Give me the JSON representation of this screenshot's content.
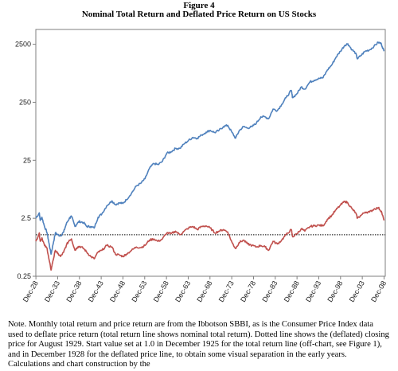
{
  "figure": {
    "label": "Figure 4",
    "title": "Nominal Total Return and Deflated Price Return on US Stocks"
  },
  "note": "Note. Monthly total return and price return are from the Ibbotson SBBI, as is the Consumer Price Index data used to deflate price return (total return line shows nominal total return).    Dotted line shows the (deflated) closing price for August 1929.  Start value set at 1.0 in December 1925 for the total return line (off-chart, see Figure 1), and in December 1928 for the deflated price line, to obtain some visual separation in the early years. Calculations and chart construction by the",
  "chart_data": {
    "type": "line",
    "title": "Nominal Total Return and Deflated Price Return on US Stocks",
    "xlabel": "",
    "ylabel": "",
    "y_scale": "log",
    "ylim": [
      0.25,
      4500
    ],
    "y_ticks": [
      0.25,
      2.5,
      25,
      250,
      2500
    ],
    "y_tick_labels": [
      "0.25",
      "2.5",
      "25",
      "250",
      "2500"
    ],
    "xlim": [
      1928.9,
      2009.2
    ],
    "x_ticks": [
      1928.92,
      1933.92,
      1938.92,
      1943.92,
      1948.92,
      1953.92,
      1958.92,
      1963.92,
      1968.92,
      1973.92,
      1978.92,
      1983.92,
      1988.92,
      1993.92,
      1998.92,
      2003.92,
      2008.92
    ],
    "x_tick_labels": [
      "Dec-28",
      "Dec-33",
      "Dec-38",
      "Dec-43",
      "Dec-48",
      "Dec-53",
      "Dec-58",
      "Dec-63",
      "Dec-68",
      "Dec-73",
      "Dec-78",
      "Dec-83",
      "Dec-88",
      "Dec-93",
      "Dec-98",
      "Dec-03",
      "Dec-08"
    ],
    "grid": false,
    "legend": "none",
    "reference_line": {
      "value": 1.3,
      "style": "dotted",
      "color": "#000000"
    },
    "series": [
      {
        "color": "#4f81bd",
        "points": [
          [
            1928.9,
            2.5
          ],
          [
            1929.7,
            3.1
          ],
          [
            1929.9,
            2.3
          ],
          [
            1930.3,
            2.6
          ],
          [
            1930.9,
            1.8
          ],
          [
            1931.5,
            1.4
          ],
          [
            1931.9,
            0.95
          ],
          [
            1932.4,
            0.6
          ],
          [
            1932.8,
            0.85
          ],
          [
            1933.4,
            1.4
          ],
          [
            1933.9,
            1.3
          ],
          [
            1934.6,
            1.25
          ],
          [
            1935.3,
            1.45
          ],
          [
            1935.9,
            2.0
          ],
          [
            1936.6,
            2.5
          ],
          [
            1937.1,
            2.7
          ],
          [
            1937.9,
            1.8
          ],
          [
            1938.5,
            2.1
          ],
          [
            1939.0,
            2.2
          ],
          [
            1939.9,
            2.1
          ],
          [
            1940.6,
            1.8
          ],
          [
            1941.5,
            1.8
          ],
          [
            1942.3,
            1.7
          ],
          [
            1943.2,
            2.6
          ],
          [
            1944.1,
            3.0
          ],
          [
            1945.2,
            4.1
          ],
          [
            1946.4,
            5.0
          ],
          [
            1947.2,
            4.3
          ],
          [
            1948.1,
            4.6
          ],
          [
            1948.9,
            4.5
          ],
          [
            1949.7,
            5.2
          ],
          [
            1950.9,
            6.8
          ],
          [
            1952.0,
            9.0
          ],
          [
            1953.0,
            10.0
          ],
          [
            1954.0,
            12.0
          ],
          [
            1955.0,
            18.0
          ],
          [
            1956.0,
            22.0
          ],
          [
            1957.0,
            21.0
          ],
          [
            1958.0,
            24.0
          ],
          [
            1959.0,
            33.0
          ],
          [
            1960.0,
            35.0
          ],
          [
            1961.0,
            40.0
          ],
          [
            1962.0,
            40.0
          ],
          [
            1963.0,
            48.0
          ],
          [
            1964.0,
            55.0
          ],
          [
            1965.0,
            62.0
          ],
          [
            1966.0,
            60.0
          ],
          [
            1967.0,
            68.0
          ],
          [
            1968.0,
            76.0
          ],
          [
            1969.0,
            82.0
          ],
          [
            1970.0,
            75.0
          ],
          [
            1971.0,
            82.0
          ],
          [
            1972.0,
            95.0
          ],
          [
            1973.0,
            100.0
          ],
          [
            1974.0,
            75.0
          ],
          [
            1974.8,
            60.0
          ],
          [
            1975.6,
            80.0
          ],
          [
            1976.6,
            95.0
          ],
          [
            1977.6,
            90.0
          ],
          [
            1978.6,
            95.0
          ],
          [
            1979.6,
            110.0
          ],
          [
            1980.6,
            140.0
          ],
          [
            1981.6,
            140.0
          ],
          [
            1982.4,
            130.0
          ],
          [
            1983.4,
            190.0
          ],
          [
            1984.4,
            180.0
          ],
          [
            1985.4,
            230.0
          ],
          [
            1986.4,
            300.0
          ],
          [
            1987.6,
            400.0
          ],
          [
            1987.9,
            300.0
          ],
          [
            1988.9,
            350.0
          ],
          [
            1989.9,
            460.0
          ],
          [
            1990.7,
            420.0
          ],
          [
            1991.9,
            560.0
          ],
          [
            1992.9,
            600.0
          ],
          [
            1993.9,
            650.0
          ],
          [
            1994.9,
            660.0
          ],
          [
            1995.9,
            900.0
          ],
          [
            1996.9,
            1100.0
          ],
          [
            1997.9,
            1500.0
          ],
          [
            1998.9,
            1900.0
          ],
          [
            1999.9,
            2400.0
          ],
          [
            2000.6,
            2550.0
          ],
          [
            2001.6,
            2000.0
          ],
          [
            2002.4,
            1750.0
          ],
          [
            2002.8,
            1400.0
          ],
          [
            2003.6,
            1600.0
          ],
          [
            2004.6,
            1900.0
          ],
          [
            2005.6,
            2000.0
          ],
          [
            2006.6,
            2300.0
          ],
          [
            2007.6,
            2700.0
          ],
          [
            2008.3,
            2550.0
          ],
          [
            2008.9,
            1900.0
          ]
        ]
      },
      {
        "color": "#c0504d",
        "points": [
          [
            1928.9,
            1.0
          ],
          [
            1929.7,
            1.4
          ],
          [
            1929.9,
            1.0
          ],
          [
            1930.3,
            1.15
          ],
          [
            1930.9,
            0.85
          ],
          [
            1931.5,
            0.75
          ],
          [
            1931.9,
            0.5
          ],
          [
            1932.4,
            0.32
          ],
          [
            1932.8,
            0.45
          ],
          [
            1933.4,
            0.7
          ],
          [
            1933.9,
            0.62
          ],
          [
            1934.6,
            0.55
          ],
          [
            1935.3,
            0.65
          ],
          [
            1935.9,
            0.85
          ],
          [
            1936.6,
            1.05
          ],
          [
            1937.1,
            1.1
          ],
          [
            1937.9,
            0.7
          ],
          [
            1938.5,
            0.8
          ],
          [
            1939.0,
            0.82
          ],
          [
            1939.9,
            0.75
          ],
          [
            1940.6,
            0.65
          ],
          [
            1941.5,
            0.55
          ],
          [
            1942.3,
            0.5
          ],
          [
            1943.2,
            0.65
          ],
          [
            1944.1,
            0.7
          ],
          [
            1945.2,
            0.85
          ],
          [
            1946.4,
            0.8
          ],
          [
            1947.2,
            0.6
          ],
          [
            1948.1,
            0.58
          ],
          [
            1948.9,
            0.55
          ],
          [
            1949.7,
            0.6
          ],
          [
            1950.9,
            0.7
          ],
          [
            1952.0,
            0.8
          ],
          [
            1953.0,
            0.78
          ],
          [
            1954.0,
            0.85
          ],
          [
            1955.0,
            1.05
          ],
          [
            1956.0,
            1.1
          ],
          [
            1957.0,
            1.0
          ],
          [
            1958.0,
            1.1
          ],
          [
            1959.0,
            1.4
          ],
          [
            1960.0,
            1.35
          ],
          [
            1961.0,
            1.5
          ],
          [
            1962.0,
            1.3
          ],
          [
            1963.0,
            1.5
          ],
          [
            1964.0,
            1.7
          ],
          [
            1965.0,
            1.8
          ],
          [
            1966.0,
            1.6
          ],
          [
            1967.0,
            1.8
          ],
          [
            1968.0,
            1.85
          ],
          [
            1969.0,
            1.7
          ],
          [
            1970.0,
            1.4
          ],
          [
            1971.0,
            1.5
          ],
          [
            1972.0,
            1.6
          ],
          [
            1973.0,
            1.45
          ],
          [
            1974.0,
            0.95
          ],
          [
            1974.8,
            0.75
          ],
          [
            1975.6,
            0.95
          ],
          [
            1976.6,
            1.05
          ],
          [
            1977.6,
            0.9
          ],
          [
            1978.6,
            0.85
          ],
          [
            1979.6,
            0.8
          ],
          [
            1980.6,
            0.85
          ],
          [
            1981.6,
            0.8
          ],
          [
            1982.4,
            0.7
          ],
          [
            1983.4,
            1.0
          ],
          [
            1984.4,
            0.9
          ],
          [
            1985.4,
            1.05
          ],
          [
            1986.4,
            1.3
          ],
          [
            1987.6,
            1.6
          ],
          [
            1987.9,
            1.2
          ],
          [
            1988.9,
            1.35
          ],
          [
            1989.9,
            1.65
          ],
          [
            1990.7,
            1.5
          ],
          [
            1991.9,
            1.8
          ],
          [
            1992.9,
            1.85
          ],
          [
            1993.9,
            1.9
          ],
          [
            1994.9,
            1.85
          ],
          [
            1995.9,
            2.4
          ],
          [
            1996.9,
            2.8
          ],
          [
            1997.9,
            3.5
          ],
          [
            1998.9,
            4.2
          ],
          [
            1999.9,
            4.9
          ],
          [
            2000.6,
            4.6
          ],
          [
            2001.6,
            3.6
          ],
          [
            2002.4,
            3.1
          ],
          [
            2002.8,
            2.5
          ],
          [
            2003.6,
            2.8
          ],
          [
            2004.6,
            3.2
          ],
          [
            2005.6,
            3.2
          ],
          [
            2006.6,
            3.6
          ],
          [
            2007.6,
            3.8
          ],
          [
            2008.3,
            3.3
          ],
          [
            2008.9,
            2.3
          ]
        ]
      }
    ]
  }
}
